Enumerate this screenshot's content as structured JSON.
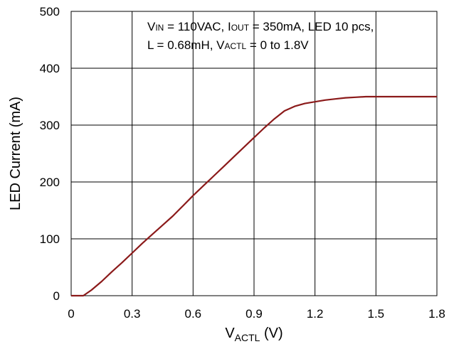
{
  "chart_data": {
    "type": "line",
    "xlabel": "V",
    "xlabel_sub": "ACTL",
    "xlabel_unit": " (V)",
    "ylabel": "LED Current (mA)",
    "xlim": [
      0,
      1.8
    ],
    "ylim": [
      0,
      500
    ],
    "x_ticks": [
      "0",
      "0.3",
      "0.6",
      "0.9",
      "1.2",
      "1.5",
      "1.8"
    ],
    "y_ticks": [
      "0",
      "100",
      "200",
      "300",
      "400",
      "500"
    ],
    "grid": true,
    "annotation": {
      "line1": [
        {
          "t": "V",
          "sub": false
        },
        {
          "t": "IN",
          "sub": true
        },
        {
          "t": " = 110VAC, I",
          "sub": false
        },
        {
          "t": "OUT",
          "sub": true
        },
        {
          "t": " = 350mA, LED 10 pcs,",
          "sub": false
        }
      ],
      "line2": [
        {
          "t": "L = 0.68mH, V",
          "sub": false
        },
        {
          "t": "ACTL",
          "sub": true
        },
        {
          "t": " = 0 to 1.8V",
          "sub": false
        }
      ]
    },
    "series": [
      {
        "color": "#8B1A1A",
        "x": [
          0,
          0.06,
          0.1,
          0.15,
          0.2,
          0.25,
          0.3,
          0.35,
          0.4,
          0.45,
          0.5,
          0.55,
          0.6,
          0.65,
          0.7,
          0.75,
          0.8,
          0.85,
          0.9,
          0.95,
          1.0,
          1.05,
          1.1,
          1.15,
          1.2,
          1.25,
          1.3,
          1.35,
          1.4,
          1.45,
          1.5,
          1.6,
          1.7,
          1.8
        ],
        "y": [
          0,
          0,
          10,
          25,
          42,
          58,
          75,
          92,
          108,
          124,
          140,
          158,
          176,
          193,
          210,
          227,
          244,
          261,
          278,
          295,
          311,
          325,
          333,
          338,
          341,
          344,
          346,
          348,
          349,
          350,
          350,
          350,
          350,
          350
        ]
      }
    ]
  }
}
